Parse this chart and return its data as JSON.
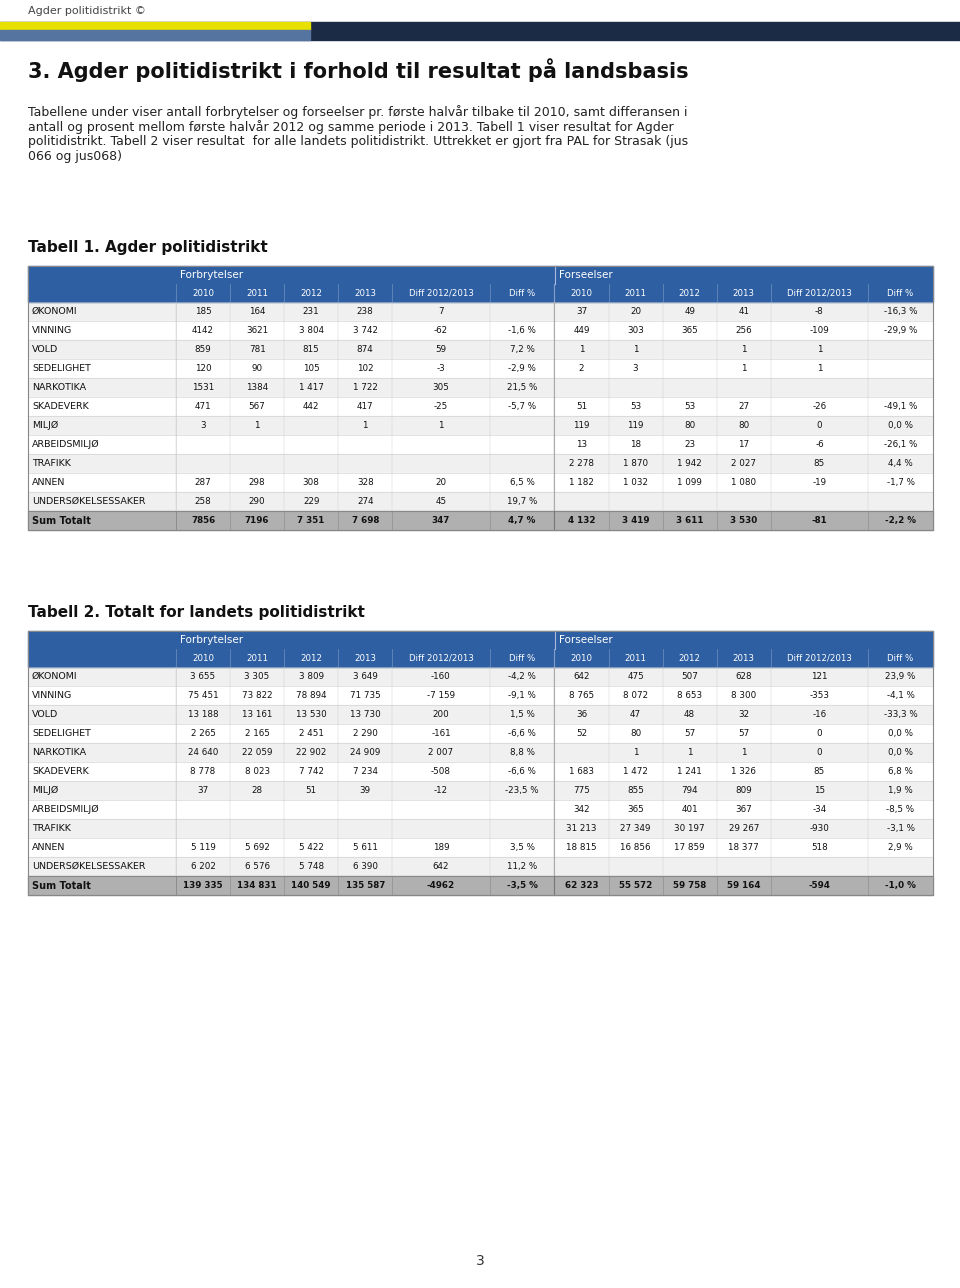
{
  "header_text": "Agder politidistrikt ©",
  "title": "3. Agder politidistrikt i forhold til resultat på landsbasis",
  "intro_lines": [
    "Tabellene under viser antall forbrytelser og forseelser pr. første halvår tilbake til 2010, samt differansen i",
    "antall og prosent mellom første halvår 2012 og samme periode i 2013. Tabell 1 viser resultat for Agder",
    "politidistrikt. Tabell 2 viser resultat  for alle landets politidistrikt. Uttrekket er gjort fra PAL for Strasak (jus",
    "066 og jus068)"
  ],
  "table1_title": "Tabell 1. Agder politidistrikt",
  "table2_title": "Tabell 2. Totalt for landets politidistrikt",
  "sub_headers": [
    "2010",
    "2011",
    "2012",
    "2013",
    "Diff 2012/2013",
    "Diff %"
  ],
  "rows_t1": [
    [
      "ØKONOMI",
      "185",
      "164",
      "231",
      "238",
      "7",
      "",
      "37",
      "20",
      "49",
      "41",
      "-8",
      "-16,3 %"
    ],
    [
      "VINNING",
      "4142",
      "3621",
      "3 804",
      "3 742",
      "-62",
      "-1,6 %",
      "449",
      "303",
      "365",
      "256",
      "-109",
      "-29,9 %"
    ],
    [
      "VOLD",
      "859",
      "781",
      "815",
      "874",
      "59",
      "7,2 %",
      "1",
      "1",
      "",
      "1",
      "1",
      ""
    ],
    [
      "SEDELIGHET",
      "120",
      "90",
      "105",
      "102",
      "-3",
      "-2,9 %",
      "2",
      "3",
      "",
      "1",
      "1",
      ""
    ],
    [
      "NARKOTIKA",
      "1531",
      "1384",
      "1 417",
      "1 722",
      "305",
      "21,5 %",
      "",
      "",
      "",
      "",
      "",
      ""
    ],
    [
      "SKADEVERK",
      "471",
      "567",
      "442",
      "417",
      "-25",
      "-5,7 %",
      "51",
      "53",
      "53",
      "27",
      "-26",
      "-49,1 %"
    ],
    [
      "MILJØ",
      "3",
      "1",
      "",
      "1",
      "1",
      "",
      "119",
      "119",
      "80",
      "80",
      "0",
      "0,0 %"
    ],
    [
      "ARBEIDSMILJØ",
      "",
      "",
      "",
      "",
      "",
      "",
      "13",
      "18",
      "23",
      "17",
      "-6",
      "-26,1 %"
    ],
    [
      "TRAFIKK",
      "",
      "",
      "",
      "",
      "",
      "",
      "2 278",
      "1 870",
      "1 942",
      "2 027",
      "85",
      "4,4 %"
    ],
    [
      "ANNEN",
      "287",
      "298",
      "308",
      "328",
      "20",
      "6,5 %",
      "1 182",
      "1 032",
      "1 099",
      "1 080",
      "-19",
      "-1,7 %"
    ],
    [
      "UNDERSØKELSESSAKER",
      "258",
      "290",
      "229",
      "274",
      "45",
      "19,7 %",
      "",
      "",
      "",
      "",
      "",
      ""
    ]
  ],
  "total_t1": [
    "Sum Totalt",
    "7856",
    "7196",
    "7 351",
    "7 698",
    "347",
    "4,7 %",
    "4 132",
    "3 419",
    "3 611",
    "3 530",
    "-81",
    "-2,2 %"
  ],
  "rows_t2": [
    [
      "ØKONOMI",
      "3 655",
      "3 305",
      "3 809",
      "3 649",
      "-160",
      "-4,2 %",
      "642",
      "475",
      "507",
      "628",
      "121",
      "23,9 %"
    ],
    [
      "VINNING",
      "75 451",
      "73 822",
      "78 894",
      "71 735",
      "-7 159",
      "-9,1 %",
      "8 765",
      "8 072",
      "8 653",
      "8 300",
      "-353",
      "-4,1 %"
    ],
    [
      "VOLD",
      "13 188",
      "13 161",
      "13 530",
      "13 730",
      "200",
      "1,5 %",
      "36",
      "47",
      "48",
      "32",
      "-16",
      "-33,3 %"
    ],
    [
      "SEDELIGHET",
      "2 265",
      "2 165",
      "2 451",
      "2 290",
      "-161",
      "-6,6 %",
      "52",
      "80",
      "57",
      "57",
      "0",
      "0,0 %"
    ],
    [
      "NARKOTIKA",
      "24 640",
      "22 059",
      "22 902",
      "24 909",
      "2 007",
      "8,8 %",
      "",
      "1",
      "1",
      "1",
      "0",
      "0,0 %"
    ],
    [
      "SKADEVERK",
      "8 778",
      "8 023",
      "7 742",
      "7 234",
      "-508",
      "-6,6 %",
      "1 683",
      "1 472",
      "1 241",
      "1 326",
      "85",
      "6,8 %"
    ],
    [
      "MILJØ",
      "37",
      "28",
      "51",
      "39",
      "-12",
      "-23,5 %",
      "775",
      "855",
      "794",
      "809",
      "15",
      "1,9 %"
    ],
    [
      "ARBEIDSMILJØ",
      "",
      "",
      "",
      "",
      "",
      "",
      "342",
      "365",
      "401",
      "367",
      "-34",
      "-8,5 %"
    ],
    [
      "TRAFIKK",
      "",
      "",
      "",
      "",
      "",
      "",
      "31 213",
      "27 349",
      "30 197",
      "29 267",
      "-930",
      "-3,1 %"
    ],
    [
      "ANNEN",
      "5 119",
      "5 692",
      "5 422",
      "5 611",
      "189",
      "3,5 %",
      "18 815",
      "16 856",
      "17 859",
      "18 377",
      "518",
      "2,9 %"
    ],
    [
      "UNDERSØKELSESSAKER",
      "6 202",
      "6 576",
      "5 748",
      "6 390",
      "642",
      "11,2 %",
      "",
      "",
      "",
      "",
      "",
      ""
    ]
  ],
  "total_t2": [
    "Sum Totalt",
    "139 335",
    "134 831",
    "140 549",
    "135 587",
    "-4962",
    "-3,5 %",
    "62 323",
    "55 572",
    "59 758",
    "59 164",
    "-594",
    "-1,0 %"
  ],
  "table_header_bg": "#2e5fa3",
  "row_alt_bg": "#f0f0f0",
  "row_bg": "#ffffff",
  "total_bg": "#b0b0b0",
  "page_bg": "#ffffff",
  "page_number": "3"
}
